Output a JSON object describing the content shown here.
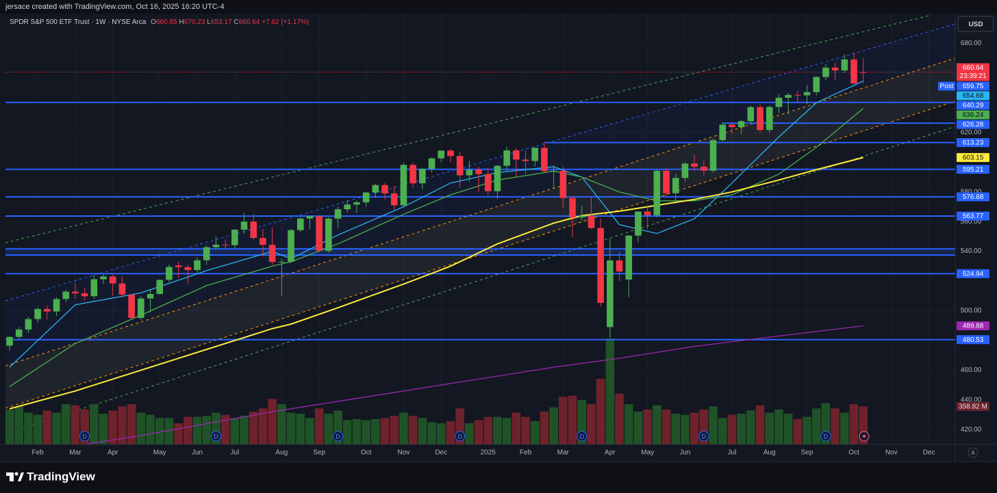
{
  "header": {
    "credit": "jersace created with TradingView.com, Oct 16, 2025 16:20 UTC-4",
    "symbol": "SPDR S&P 500 ETF Trust · 1W · NYSE Arca",
    "ohlc": [
      {
        "key": "O",
        "value": 660.65
      },
      {
        "key": "H",
        "value": 670.23
      },
      {
        "key": "L",
        "value": 653.17
      },
      {
        "key": "C",
        "value": 660.64
      }
    ],
    "change": "+7.62 (+1.17%)",
    "currency": "USD",
    "brand": "TradingView"
  },
  "chart_data": {
    "type": "candlestick",
    "open": [
      476.5,
      482.4,
      487.4,
      494.4,
      501.2,
      499.5,
      507.9,
      512.9,
      511.7,
      509.8,
      521.2,
      523.1,
      518.4,
      510.9,
      495.2,
      508.3,
      511.3,
      520.8,
      530.5,
      529.4,
      527.4,
      534.0,
      542.8,
      544.5,
      544.2,
      554.6,
      560.0,
      549.0,
      544.4,
      532.9,
      533.0,
      554.3,
      562.1,
      563.7,
      540.4,
      562.0,
      568.3,
      571.5,
      573.0,
      579.6,
      584.6,
      579.0,
      571.0,
      598.2,
      585.8,
      595.5,
      602.6,
      607.8,
      604.2,
      591.2,
      595.0,
      592.0,
      580.5,
      597.6,
      608.0,
      601.8,
      600.8,
      609.7,
      594.0,
      594.2,
      575.9,
      562.8,
      564.0,
      555.7,
      489.0,
      533.9,
      521.0,
      550.6,
      566.8,
      564.3,
      594.2,
      579.1,
      589.4,
      599.1,
      597.0,
      594.3,
      614.9,
      625.3,
      623.6,
      627.6,
      637.1,
      621.7,
      637.2,
      643.4,
      645.3,
      645.05,
      647.2,
      657.4,
      663.7,
      661.8,
      669.2,
      660.65
    ],
    "high": [
      482.7,
      489,
      496,
      502,
      503.5,
      509,
      514,
      518.5,
      515.5,
      524,
      524.6,
      524.4,
      523,
      511,
      510,
      514,
      521,
      531,
      533,
      531,
      536,
      544,
      550,
      548,
      555,
      566,
      565,
      555,
      556,
      535,
      555,
      563,
      564.2,
      563.9,
      563,
      570,
      574.7,
      574,
      580,
      585.6,
      586,
      584,
      599.5,
      600,
      596,
      603.4,
      608,
      609,
      607,
      601,
      597,
      596,
      598,
      610.8,
      609.9,
      608,
      610,
      613.2,
      598,
      597,
      577,
      570.6,
      577,
      562.4,
      548.6,
      539.7,
      551,
      567,
      570,
      595,
      596,
      592,
      600,
      605,
      601,
      616,
      626.9,
      626.9,
      628.6,
      638,
      639,
      638,
      646,
      646.5,
      648,
      652,
      658,
      666,
      667,
      672.7,
      673.9,
      670.23
    ],
    "low": [
      473,
      481,
      485,
      492,
      494,
      496.5,
      506,
      508,
      507,
      508,
      518,
      510,
      509,
      493.9,
      494,
      499,
      511,
      519,
      522,
      518,
      525,
      531,
      541,
      541,
      542,
      552,
      548,
      537,
      531,
      510.3,
      532,
      553,
      555,
      539.4,
      539,
      556,
      566,
      566,
      570,
      576,
      575,
      568,
      570,
      583,
      582,
      593,
      600,
      600,
      583,
      587,
      580,
      578,
      575.4,
      594,
      590,
      592,
      597,
      593,
      582,
      569,
      549.7,
      561,
      555,
      503,
      481.8,
      520,
      509.1,
      546,
      555,
      563,
      577,
      574,
      587,
      594,
      591,
      593,
      614,
      619,
      619,
      626,
      620,
      620,
      633,
      632,
      640,
      639,
      645,
      655,
      655,
      660,
      652.8,
      653.17
    ],
    "close": [
      482.4,
      487.4,
      494.4,
      501.2,
      499.5,
      507.9,
      512.9,
      511.7,
      509.8,
      521.2,
      523.1,
      518.4,
      510.9,
      495.2,
      508.3,
      511.3,
      520.8,
      529.5,
      529.4,
      527.4,
      534.0,
      542.8,
      544.5,
      544.2,
      554.6,
      560.0,
      549.0,
      544.4,
      532.9,
      533.0,
      554.3,
      562.1,
      563.7,
      540.4,
      562.0,
      568.3,
      571.5,
      573.0,
      579.6,
      584.6,
      579.0,
      571.0,
      598.2,
      585.8,
      595.5,
      602.6,
      607.8,
      604.2,
      591.2,
      595.0,
      592.0,
      580.5,
      597.6,
      608.0,
      601.8,
      600.8,
      609.7,
      594.0,
      594.2,
      575.9,
      562.8,
      564.0,
      555.7,
      505.3,
      533.9,
      526.4,
      550.6,
      566.8,
      564.3,
      594.2,
      579.1,
      589.4,
      599.1,
      597.0,
      594.3,
      614.9,
      625.3,
      623.6,
      627.6,
      637.1,
      621.7,
      637.2,
      643.4,
      645.3,
      645.05,
      647.2,
      657.4,
      663.7,
      661.8,
      669.2,
      653.0,
      660.64
    ],
    "up_color": "#4caf50",
    "down_color": "#f23645",
    "volume": {
      "values": [
        330,
        360,
        300,
        280,
        320,
        300,
        380,
        370,
        330,
        380,
        290,
        320,
        360,
        380,
        300,
        280,
        250,
        250,
        200,
        260,
        260,
        270,
        300,
        280,
        250,
        270,
        310,
        340,
        430,
        380,
        300,
        290,
        250,
        340,
        290,
        320,
        230,
        240,
        230,
        240,
        250,
        270,
        300,
        270,
        250,
        210,
        200,
        220,
        340,
        200,
        230,
        260,
        260,
        250,
        300,
        260,
        220,
        310,
        350,
        450,
        460,
        420,
        380,
        620,
        1000,
        480,
        380,
        310,
        330,
        370,
        330,
        290,
        280,
        300,
        330,
        360,
        250,
        280,
        290,
        320,
        370,
        300,
        330,
        290,
        240,
        260,
        340,
        390,
        340,
        300,
        380,
        358.82
      ],
      "value_label": "358.82 M",
      "up_color": "#1f5327",
      "down_color": "#6e222b"
    },
    "xlim": [
      -0.44,
      100.8
    ],
    "xticks": [
      {
        "value": 3,
        "label": "Feb"
      },
      {
        "value": 7,
        "label": "Mar"
      },
      {
        "value": 11,
        "label": "Apr"
      },
      {
        "value": 16,
        "label": "May"
      },
      {
        "value": 20,
        "label": "Jun"
      },
      {
        "value": 24,
        "label": "Jul"
      },
      {
        "value": 29,
        "label": "Aug"
      },
      {
        "value": 33,
        "label": "Sep"
      },
      {
        "value": 38,
        "label": "Oct"
      },
      {
        "value": 42,
        "label": "Nov"
      },
      {
        "value": 46,
        "label": "Dec"
      },
      {
        "value": 51,
        "label": "2025"
      },
      {
        "value": 55,
        "label": "Feb"
      },
      {
        "value": 59,
        "label": "Mar"
      },
      {
        "value": 64,
        "label": "Apr"
      },
      {
        "value": 68,
        "label": "May"
      },
      {
        "value": 72,
        "label": "Jun"
      },
      {
        "value": 77,
        "label": "Jul"
      },
      {
        "value": 81,
        "label": "Aug"
      },
      {
        "value": 85,
        "label": "Sep"
      },
      {
        "value": 90,
        "label": "Oct"
      },
      {
        "value": 94,
        "label": "Nov"
      },
      {
        "value": 98,
        "label": "Dec"
      }
    ],
    "ylim": [
      410,
      700
    ],
    "yticks": [
      {
        "value": 680,
        "label": "680.00"
      },
      {
        "value": 620,
        "label": "620.00"
      },
      {
        "value": 580,
        "label": "580.00"
      },
      {
        "value": 560,
        "label": "560.00"
      },
      {
        "value": 540,
        "label": "540.00"
      },
      {
        "value": 500,
        "label": "500.00"
      },
      {
        "value": 460,
        "label": "460.00"
      },
      {
        "value": 440,
        "label": "440.00"
      },
      {
        "value": 420,
        "label": "420.00"
      }
    ],
    "grid": true,
    "last_price": {
      "countdown": "23:39:21",
      "color": "#f23645"
    },
    "post_market": {
      "label": "Post",
      "value": 659.75,
      "color": "#2962ff"
    },
    "series": [
      {
        "color": "#29b6f6",
        "label_text_color": "#0b0e14",
        "x": [
          0,
          7,
          14,
          21,
          28,
          30,
          35,
          42,
          47,
          52,
          58,
          61,
          65,
          69,
          73,
          77,
          82,
          86,
          91
        ],
        "values": [
          462,
          504,
          512,
          527,
          540,
          535,
          551,
          570,
          586,
          593,
          597,
          590,
          558,
          552,
          562,
          586,
          617,
          640,
          654.68
        ]
      },
      {
        "color": "#4caf50",
        "label_text_color": "#0b0e14",
        "x": [
          0,
          7,
          14,
          21,
          28,
          30,
          35,
          42,
          47,
          52,
          58,
          61,
          65,
          69,
          73,
          77,
          82,
          86,
          91
        ],
        "values": [
          449,
          478,
          497,
          517,
          530,
          533,
          545,
          565,
          578,
          588,
          594,
          590,
          580,
          574,
          574,
          578,
          592,
          610,
          636.24
        ]
      },
      {
        "color": "#ffeb3b",
        "label_text_color": "#0b0e14",
        "x": [
          0,
          7,
          14,
          21,
          28,
          30,
          35,
          42,
          47,
          52,
          58,
          61,
          65,
          69,
          73,
          77,
          82,
          86,
          91
        ],
        "values": [
          434,
          446,
          460,
          474,
          488,
          491,
          502,
          518,
          530,
          545,
          559,
          564,
          567,
          571,
          575,
          580,
          588,
          595,
          603.15
        ]
      },
      {
        "color": "#9c27b0",
        "label_text_color": "#ffffff",
        "x": [
          8,
          14,
          21,
          28,
          35,
          42,
          47,
          52,
          58,
          65,
          73,
          82,
          91
        ],
        "values": [
          410,
          416,
          424,
          432,
          439,
          446,
          451,
          456,
          462,
          468,
          476,
          483,
          489.88
        ]
      }
    ],
    "levels": [
      {
        "value": 640.29
      },
      {
        "value": 626.28,
        "start": 76
      },
      {
        "value": 613.23,
        "start": 57
      },
      {
        "value": 595.21
      },
      {
        "value": 576.68
      },
      {
        "value": 563.77
      },
      {
        "value": 524.94
      },
      {
        "value": 480.53
      }
    ],
    "level_color": "#2962ff",
    "band": [
      537.5,
      541.7
    ],
    "dividends": {
      "label": "D",
      "x": [
        8,
        22,
        35,
        48,
        61,
        74,
        87
      ]
    },
    "autoscale_label": "A"
  }
}
